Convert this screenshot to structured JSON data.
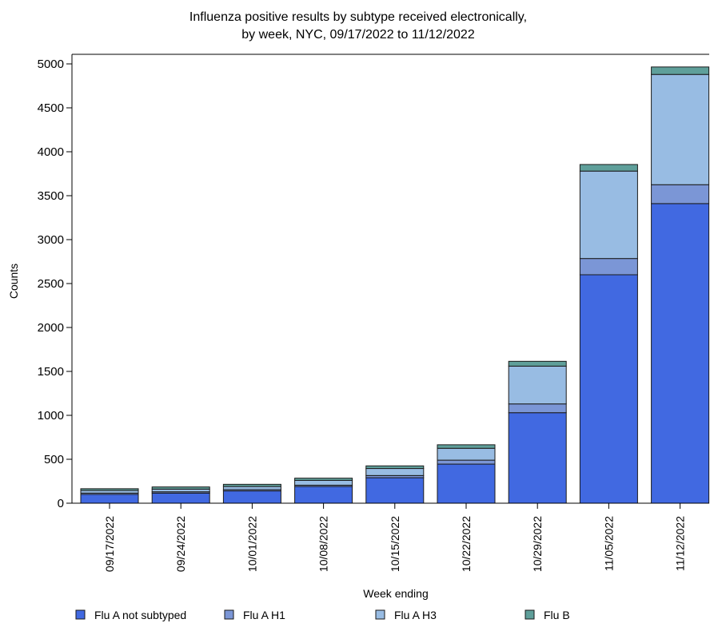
{
  "chart_data": {
    "type": "bar",
    "stacked": true,
    "title_lines": [
      "Influenza positive results by subtype received electronically,",
      "by week, NYC, 09/17/2022 to 11/12/2022"
    ],
    "xlabel": "Week ending",
    "ylabel": "Counts",
    "ylim": [
      0,
      5000
    ],
    "yticks": [
      0,
      500,
      1000,
      1500,
      2000,
      2500,
      3000,
      3500,
      4000,
      4500,
      5000
    ],
    "grid": false,
    "legend_position": "bottom",
    "categories": [
      "09/17/2022",
      "09/24/2022",
      "10/01/2022",
      "10/08/2022",
      "10/15/2022",
      "10/22/2022",
      "10/29/2022",
      "11/05/2022",
      "11/12/2022"
    ],
    "series": [
      {
        "name": "Flu A not subtyped",
        "color": "#4169E1",
        "values": [
          100,
          115,
          140,
          190,
          290,
          445,
          1030,
          2600,
          3410
        ]
      },
      {
        "name": "Flu A H1",
        "color": "#7B96D6",
        "values": [
          15,
          15,
          15,
          15,
          25,
          45,
          100,
          185,
          215
        ]
      },
      {
        "name": "Flu A H3",
        "color": "#98BCE3",
        "values": [
          30,
          30,
          35,
          55,
          80,
          135,
          430,
          995,
          1255
        ]
      },
      {
        "name": "Flu B",
        "color": "#5F9F9A",
        "values": [
          20,
          25,
          25,
          25,
          30,
          40,
          55,
          75,
          85
        ]
      }
    ]
  }
}
